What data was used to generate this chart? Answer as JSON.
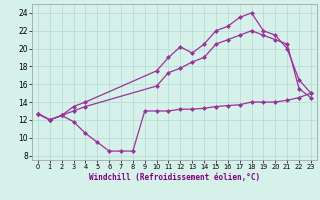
{
  "xlabel": "Windchill (Refroidissement éolien,°C)",
  "bg_color": "#d6f0ea",
  "grid_color": "#b8ddd6",
  "line_color": "#993399",
  "xlim": [
    -0.5,
    23.5
  ],
  "ylim": [
    7.5,
    25.0
  ],
  "yticks": [
    8,
    10,
    12,
    14,
    16,
    18,
    20,
    22,
    24
  ],
  "xticks": [
    0,
    1,
    2,
    3,
    4,
    5,
    6,
    7,
    8,
    9,
    10,
    11,
    12,
    13,
    14,
    15,
    16,
    17,
    18,
    19,
    20,
    21,
    22,
    23
  ],
  "series1": {
    "x": [
      0,
      1,
      2,
      3,
      4,
      10,
      11,
      12,
      13,
      14,
      15,
      16,
      17,
      18,
      19,
      20,
      21,
      22,
      23
    ],
    "y": [
      12.7,
      12.0,
      12.5,
      13.5,
      14.0,
      17.5,
      19.0,
      20.2,
      19.5,
      20.5,
      22.0,
      22.5,
      23.5,
      24.0,
      22.0,
      21.5,
      20.0,
      16.5,
      15.0
    ]
  },
  "series2": {
    "x": [
      0,
      1,
      2,
      3,
      4,
      10,
      11,
      12,
      13,
      14,
      15,
      16,
      17,
      18,
      19,
      20,
      21,
      22,
      23
    ],
    "y": [
      12.7,
      12.0,
      12.5,
      13.0,
      13.5,
      15.8,
      17.3,
      17.8,
      18.5,
      19.0,
      20.5,
      21.0,
      21.5,
      22.0,
      21.5,
      21.0,
      20.5,
      15.5,
      14.5
    ]
  },
  "series3": {
    "x": [
      0,
      1,
      2,
      3,
      4,
      5,
      6,
      7,
      8,
      9,
      10,
      11,
      12,
      13,
      14,
      15,
      16,
      17,
      18,
      19,
      20,
      21,
      22,
      23
    ],
    "y": [
      12.7,
      12.0,
      12.5,
      11.8,
      10.5,
      9.5,
      8.5,
      8.5,
      8.5,
      13.0,
      13.0,
      13.0,
      13.2,
      13.2,
      13.3,
      13.5,
      13.6,
      13.7,
      14.0,
      14.0,
      14.0,
      14.2,
      14.5,
      15.0
    ]
  }
}
